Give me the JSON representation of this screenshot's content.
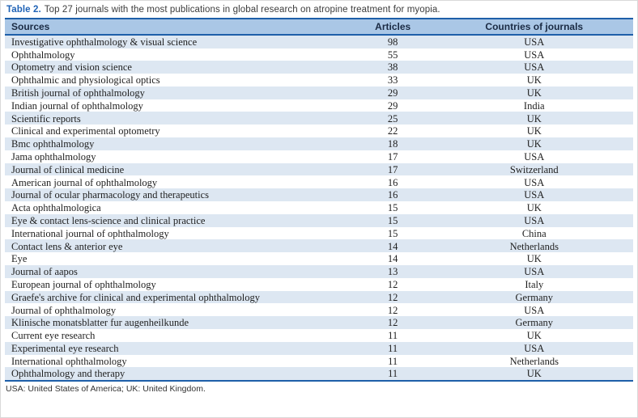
{
  "title": {
    "label": "Table 2.",
    "text": "Top 27 journals with the most publications in global research on atropine treatment for myopia."
  },
  "table": {
    "columns": [
      "Sources",
      "Articles",
      "Countries of journals"
    ],
    "rows": [
      {
        "source": "Investigative ophthalmology & visual science",
        "articles": "98",
        "country": "USA"
      },
      {
        "source": "Ophthalmology",
        "articles": "55",
        "country": "USA"
      },
      {
        "source": "Optometry and vision science",
        "articles": "38",
        "country": "USA"
      },
      {
        "source": "Ophthalmic and physiological optics",
        "articles": "33",
        "country": "UK"
      },
      {
        "source": "British journal of ophthalmology",
        "articles": "29",
        "country": "UK"
      },
      {
        "source": "Indian journal of ophthalmology",
        "articles": "29",
        "country": "India"
      },
      {
        "source": "Scientific reports",
        "articles": "25",
        "country": "UK"
      },
      {
        "source": "Clinical and experimental optometry",
        "articles": "22",
        "country": "UK"
      },
      {
        "source": "Bmc ophthalmology",
        "articles": "18",
        "country": "UK"
      },
      {
        "source": "Jama ophthalmology",
        "articles": "17",
        "country": "USA"
      },
      {
        "source": "Journal of clinical medicine",
        "articles": "17",
        "country": "Switzerland"
      },
      {
        "source": "American journal of ophthalmology",
        "articles": "16",
        "country": "USA"
      },
      {
        "source": "Journal of ocular pharmacology and therapeutics",
        "articles": "16",
        "country": "USA"
      },
      {
        "source": "Acta ophthalmologica",
        "articles": "15",
        "country": "UK"
      },
      {
        "source": "Eye & contact lens-science and clinical practice",
        "articles": "15",
        "country": "USA"
      },
      {
        "source": "International journal of ophthalmology",
        "articles": "15",
        "country": "China"
      },
      {
        "source": "Contact lens & anterior eye",
        "articles": "14",
        "country": "Netherlands"
      },
      {
        "source": "Eye",
        "articles": "14",
        "country": "UK"
      },
      {
        "source": "Journal of aapos",
        "articles": "13",
        "country": "USA"
      },
      {
        "source": "European journal of ophthalmology",
        "articles": "12",
        "country": "Italy"
      },
      {
        "source": "Graefe's archive for clinical and experimental ophthalmology",
        "articles": "12",
        "country": "Germany"
      },
      {
        "source": "Journal of ophthalmology",
        "articles": "12",
        "country": "USA"
      },
      {
        "source": "Klinische monatsblatter fur augenheilkunde",
        "articles": "12",
        "country": "Germany"
      },
      {
        "source": "Current eye research",
        "articles": "11",
        "country": "UK"
      },
      {
        "source": "Experimental eye research",
        "articles": "11",
        "country": "USA"
      },
      {
        "source": "International ophthalmology",
        "articles": "11",
        "country": "Netherlands"
      },
      {
        "source": "Ophthalmology and therapy",
        "articles": "11",
        "country": "UK"
      }
    ]
  },
  "footnote": "USA: United States of America; UK: United Kingdom.",
  "colors": {
    "accent_blue": "#2063b6",
    "header_bg": "#aac7e6",
    "header_text": "#1b2b44",
    "rule_blue": "#1e5fa9",
    "row_alt_bg": "#dde7f2"
  }
}
